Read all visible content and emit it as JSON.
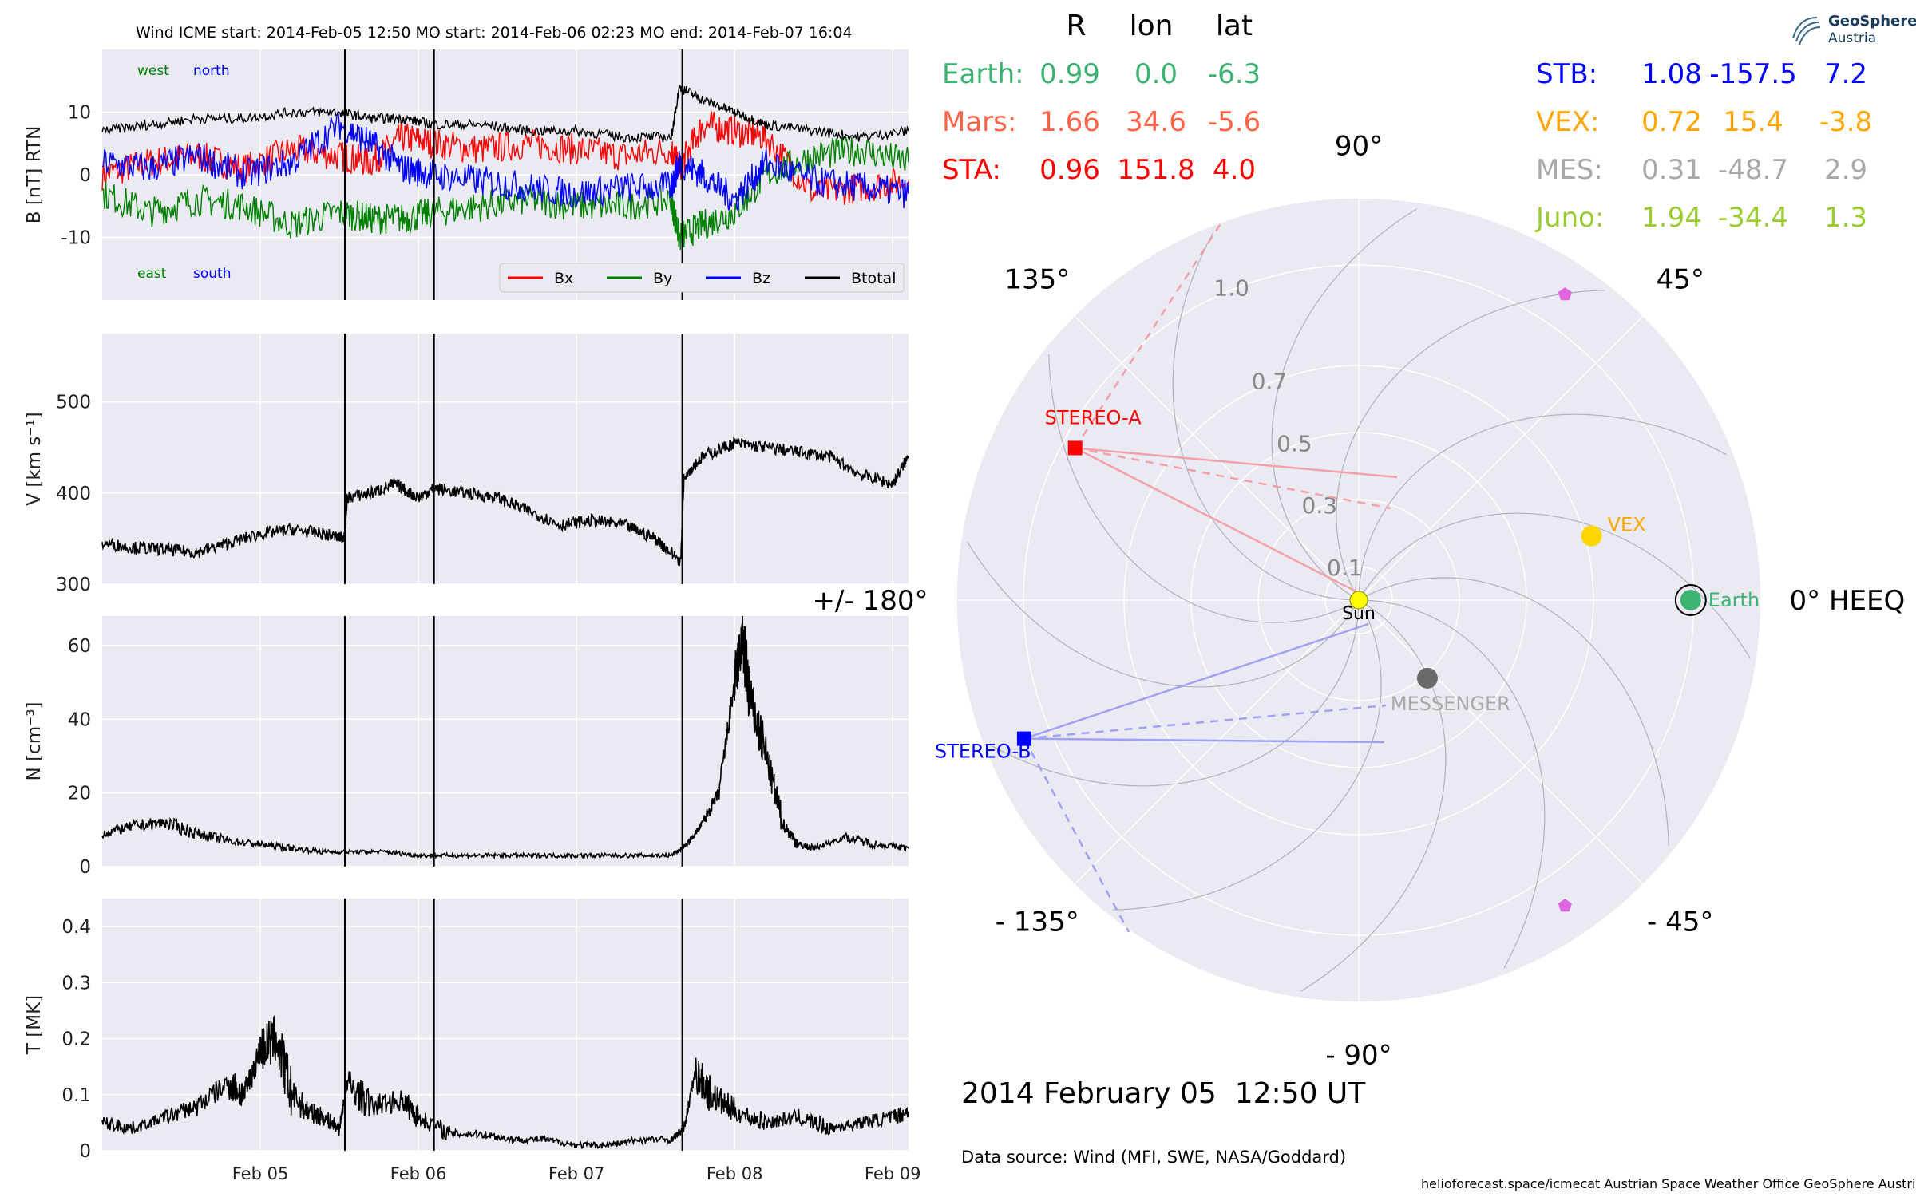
{
  "header": {
    "title": "Wind    ICME start: 2014-Feb-05 12:50   MO start: 2014-Feb-06 02:23   MO end: 2014-Feb-07 16:04"
  },
  "positions": {
    "headers": [
      "R",
      "lon",
      "lat"
    ],
    "left": [
      {
        "name": "Earth:",
        "R": "0.99",
        "lon": "0.0",
        "lat": "-6.3",
        "color": "#3cb371"
      },
      {
        "name": "Mars:",
        "R": "1.66",
        "lon": "34.6",
        "lat": "-5.6",
        "color": "#ff6347"
      },
      {
        "name": "STA:",
        "R": "0.96",
        "lon": "151.8",
        "lat": "4.0",
        "color": "#ff0000"
      }
    ],
    "right": [
      {
        "name": "STB:",
        "R": "1.08",
        "lon": "-157.5",
        "lat": "7.2",
        "color": "#0000ff"
      },
      {
        "name": "VEX:",
        "R": "0.72",
        "lon": "15.4",
        "lat": "-3.8",
        "color": "#ffa500"
      },
      {
        "name": "MES:",
        "R": "0.31",
        "lon": "-48.7",
        "lat": "2.9",
        "color": "#a9a9a9"
      },
      {
        "name": "Juno:",
        "R": "1.94",
        "lon": "-34.4",
        "lat": "1.3",
        "color": "#9acd32"
      }
    ]
  },
  "logo": {
    "title": "GeoSphere",
    "subtitle": "Austria"
  },
  "date_label": "2014 February 05  12:50 UT",
  "source": "Data source: Wind (MFI, SWE, NASA/Goddard)",
  "footer": "helioforecast.space/icmecat   Austrian Space Weather Office   GeoSphere Austria",
  "chart_data": [
    {
      "type": "line",
      "panel": "B",
      "ylabel": "B [nT] RTN",
      "ylim": [
        -20,
        20
      ],
      "yticks": [
        -10,
        0,
        10
      ],
      "x_unit": "days since 2014-02-04 00:00",
      "xlim": [
        0.0,
        5.1
      ],
      "annotations": {
        "top_left": [
          "west",
          "north"
        ],
        "bottom_left": [
          "east",
          "south"
        ]
      },
      "legend": {
        "placement": "lower-right",
        "entries": [
          "Bx",
          "By",
          "Bz",
          "Btotal"
        ]
      },
      "series": [
        {
          "name": "Bx",
          "color": "#ff0000",
          "x": [
            0.0,
            0.3,
            0.6,
            0.9,
            1.2,
            1.5,
            1.7,
            1.9,
            2.1,
            2.4,
            2.7,
            3.0,
            3.3,
            3.6,
            3.65,
            3.8,
            4.0,
            4.2,
            4.5,
            4.8,
            5.1
          ],
          "y": [
            0,
            2,
            3,
            1,
            4,
            3,
            2,
            6,
            5,
            4,
            5,
            4,
            3,
            4,
            1,
            8,
            7,
            6,
            -3,
            -2,
            -1
          ]
        },
        {
          "name": "By",
          "color": "#008000",
          "x": [
            0.0,
            0.3,
            0.6,
            0.9,
            1.2,
            1.5,
            1.7,
            1.9,
            2.1,
            2.4,
            2.7,
            3.0,
            3.3,
            3.6,
            3.65,
            3.8,
            4.0,
            4.2,
            4.5,
            4.8,
            5.1
          ],
          "y": [
            -3,
            -6,
            -4,
            -5,
            -8,
            -6,
            -7,
            -7,
            -6,
            -5,
            -4,
            -5,
            -5,
            -4,
            -10,
            -8,
            -6,
            0,
            3,
            4,
            2
          ]
        },
        {
          "name": "Bz",
          "color": "#0000ff",
          "x": [
            0.0,
            0.3,
            0.6,
            0.9,
            1.2,
            1.5,
            1.7,
            1.9,
            2.1,
            2.4,
            2.7,
            3.0,
            3.3,
            3.6,
            3.65,
            3.8,
            4.0,
            4.2,
            4.5,
            4.8,
            5.1
          ],
          "y": [
            2,
            1,
            3,
            0,
            2,
            8,
            5,
            1,
            0,
            -1,
            -2,
            -3,
            -2,
            -2,
            2,
            0,
            -4,
            2,
            -1,
            -2,
            -3
          ]
        },
        {
          "name": "Btotal",
          "color": "#000000",
          "x": [
            0.0,
            0.3,
            0.6,
            0.9,
            1.2,
            1.5,
            1.7,
            1.9,
            2.1,
            2.4,
            2.7,
            3.0,
            3.3,
            3.6,
            3.65,
            3.8,
            4.0,
            4.2,
            4.5,
            4.8,
            5.1
          ],
          "y": [
            7,
            8,
            9,
            9,
            10,
            10,
            9,
            9,
            8,
            8,
            7,
            7,
            6,
            6,
            14,
            12,
            10,
            8,
            7,
            6,
            7
          ]
        }
      ],
      "vlines_x": [
        1.535,
        2.099,
        3.669
      ]
    },
    {
      "type": "line",
      "panel": "V",
      "ylabel": "V [km s$^{-1}$]",
      "ylim": [
        300,
        575
      ],
      "yticks": [
        300,
        400,
        500
      ],
      "xlim": [
        0.0,
        5.1
      ],
      "series": [
        {
          "name": "V",
          "color": "#000000",
          "x": [
            0.0,
            0.2,
            0.4,
            0.6,
            0.8,
            1.0,
            1.2,
            1.4,
            1.53,
            1.55,
            1.7,
            1.85,
            2.0,
            2.1,
            2.3,
            2.5,
            2.7,
            2.9,
            3.1,
            3.3,
            3.5,
            3.66,
            3.68,
            3.8,
            4.0,
            4.2,
            4.4,
            4.6,
            4.8,
            5.0,
            5.1
          ],
          "y": [
            345,
            340,
            338,
            335,
            345,
            355,
            360,
            355,
            350,
            395,
            400,
            410,
            395,
            405,
            400,
            395,
            380,
            365,
            370,
            365,
            350,
            325,
            420,
            440,
            455,
            450,
            445,
            440,
            420,
            410,
            440
          ]
        }
      ],
      "vlines_x": [
        1.535,
        2.099,
        3.669
      ]
    },
    {
      "type": "line",
      "panel": "N",
      "ylabel": "N [cm$^{-3}$]",
      "ylim": [
        0,
        68
      ],
      "yticks": [
        0,
        20,
        40,
        60
      ],
      "xlim": [
        0.0,
        5.1
      ],
      "series": [
        {
          "name": "N",
          "color": "#000000",
          "x": [
            0.0,
            0.2,
            0.4,
            0.6,
            0.8,
            1.0,
            1.2,
            1.4,
            1.6,
            1.8,
            2.0,
            2.2,
            2.4,
            2.6,
            2.8,
            3.0,
            3.2,
            3.4,
            3.6,
            3.7,
            3.8,
            3.9,
            4.0,
            4.05,
            4.1,
            4.2,
            4.3,
            4.4,
            4.5,
            4.7,
            4.9,
            5.1
          ],
          "y": [
            9,
            11,
            12,
            9,
            7,
            6,
            5,
            4,
            4,
            4,
            3,
            3,
            3,
            3,
            3,
            3,
            3,
            3,
            3,
            6,
            12,
            20,
            50,
            62,
            45,
            30,
            12,
            6,
            5,
            8,
            6,
            5
          ]
        }
      ],
      "vlines_x": [
        1.535,
        2.099,
        3.669
      ]
    },
    {
      "type": "line",
      "panel": "T",
      "ylabel": "T [MK]",
      "ylim": [
        0.0,
        0.45
      ],
      "yticks": [
        0.0,
        0.1,
        0.2,
        0.3,
        0.4
      ],
      "xlim": [
        0.0,
        5.1
      ],
      "xticklabels": [
        "Feb 05",
        "Feb 06",
        "Feb 07",
        "Feb 08",
        "Feb 09"
      ],
      "xticks": [
        1,
        2,
        3,
        4,
        5
      ],
      "series": [
        {
          "name": "T",
          "color": "#000000",
          "x": [
            0.0,
            0.2,
            0.4,
            0.6,
            0.8,
            0.9,
            1.0,
            1.1,
            1.2,
            1.3,
            1.4,
            1.5,
            1.55,
            1.7,
            1.9,
            2.0,
            2.2,
            2.4,
            2.6,
            2.8,
            3.0,
            3.2,
            3.4,
            3.6,
            3.68,
            3.75,
            3.85,
            4.0,
            4.2,
            4.4,
            4.6,
            4.8,
            5.0,
            5.1
          ],
          "y": [
            0.05,
            0.04,
            0.06,
            0.08,
            0.12,
            0.1,
            0.18,
            0.2,
            0.1,
            0.07,
            0.06,
            0.04,
            0.12,
            0.08,
            0.09,
            0.06,
            0.03,
            0.03,
            0.02,
            0.02,
            0.01,
            0.01,
            0.02,
            0.02,
            0.04,
            0.14,
            0.1,
            0.07,
            0.05,
            0.06,
            0.04,
            0.05,
            0.06,
            0.07
          ]
        }
      ],
      "vlines_x": [
        1.535,
        2.099,
        3.669
      ]
    },
    {
      "type": "scatter",
      "panel": "polar",
      "angle_labels": [
        {
          "text": "0° HEEQ",
          "deg": 0
        },
        {
          "text": "45°",
          "deg": 45
        },
        {
          "text": "90°",
          "deg": 90
        },
        {
          "text": "135°",
          "deg": 135
        },
        {
          "text": "+/- 180°",
          "deg": 180
        },
        {
          "text": "- 135°",
          "deg": -135
        },
        {
          "text": "- 90°",
          "deg": -90
        },
        {
          "text": "- 45°",
          "deg": -45
        }
      ],
      "radial_ticks": [
        0.1,
        0.3,
        0.5,
        0.7,
        1.0
      ],
      "rmax": 1.2,
      "bodies": [
        {
          "label": "Sun",
          "r": 0.0,
          "lon": 0.0,
          "color": "#ffff00",
          "marker": "circle"
        },
        {
          "label": "Earth",
          "r": 0.99,
          "lon": 0.0,
          "color": "#3cb371",
          "marker": "circle"
        },
        {
          "label": "VEX",
          "r": 0.72,
          "lon": 15.4,
          "color": "#ffd700",
          "marker": "circle"
        },
        {
          "label": "MESSENGER",
          "r": 0.31,
          "lon": -48.7,
          "color": "#696969",
          "marker": "circle"
        },
        {
          "label": "STEREO-A",
          "r": 0.96,
          "lon": 151.8,
          "color": "#ff0000",
          "marker": "square"
        },
        {
          "label": "STEREO-B",
          "r": 1.08,
          "lon": -157.5,
          "color": "#0000ff",
          "marker": "square"
        },
        {
          "label": "",
          "r": 1.1,
          "lon": 56,
          "color": "#e066e0",
          "marker": "pentagon"
        },
        {
          "label": "",
          "r": 1.1,
          "lon": -56,
          "color": "#e066e0",
          "marker": "pentagon"
        }
      ],
      "label_colors": {
        "Sun": "#000000",
        "Earth": "#3cb371",
        "VEX": "#ffa500",
        "MESSENGER": "#a9a9a9",
        "STEREO-A": "#ff0000",
        "STEREO-B": "#0000ff"
      }
    }
  ]
}
